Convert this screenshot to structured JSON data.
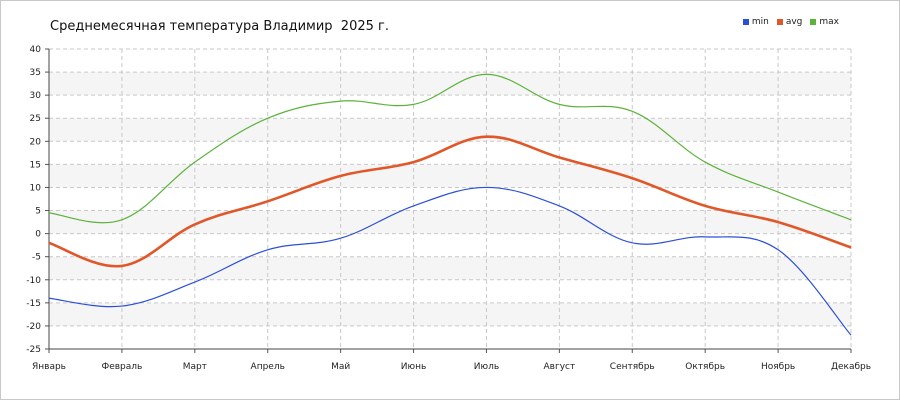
{
  "chart_data": {
    "type": "line",
    "title": "Среднемесячная температура Владимир  2025 г.",
    "categories": [
      "Январь",
      "Февраль",
      "Март",
      "Апрель",
      "Май",
      "Июнь",
      "Июль",
      "Август",
      "Сентябрь",
      "Октябрь",
      "Ноябрь",
      "Декабрь"
    ],
    "ylim": [
      -25,
      40
    ],
    "yticks": [
      40,
      35,
      30,
      25,
      20,
      15,
      10,
      5,
      0,
      -5,
      -10,
      -15,
      -20,
      -25
    ],
    "grid": true,
    "legend_position": "top-right",
    "series": [
      {
        "name": "min",
        "color": "#2b4fd6",
        "values": [
          -14,
          -15.7,
          -10.5,
          -3.5,
          -1,
          6,
          10,
          6,
          -2,
          -0.7,
          -3.5,
          -22
        ]
      },
      {
        "name": "avg",
        "color": "#e0582a",
        "values": [
          -2,
          -7,
          2,
          7,
          12.5,
          15.5,
          21,
          16.5,
          12,
          6,
          2.5,
          -3
        ]
      },
      {
        "name": "max",
        "color": "#5bb33a",
        "values": [
          4.5,
          3,
          15.5,
          25,
          28.7,
          28,
          34.5,
          28,
          26.5,
          15.5,
          9,
          3
        ]
      }
    ]
  }
}
